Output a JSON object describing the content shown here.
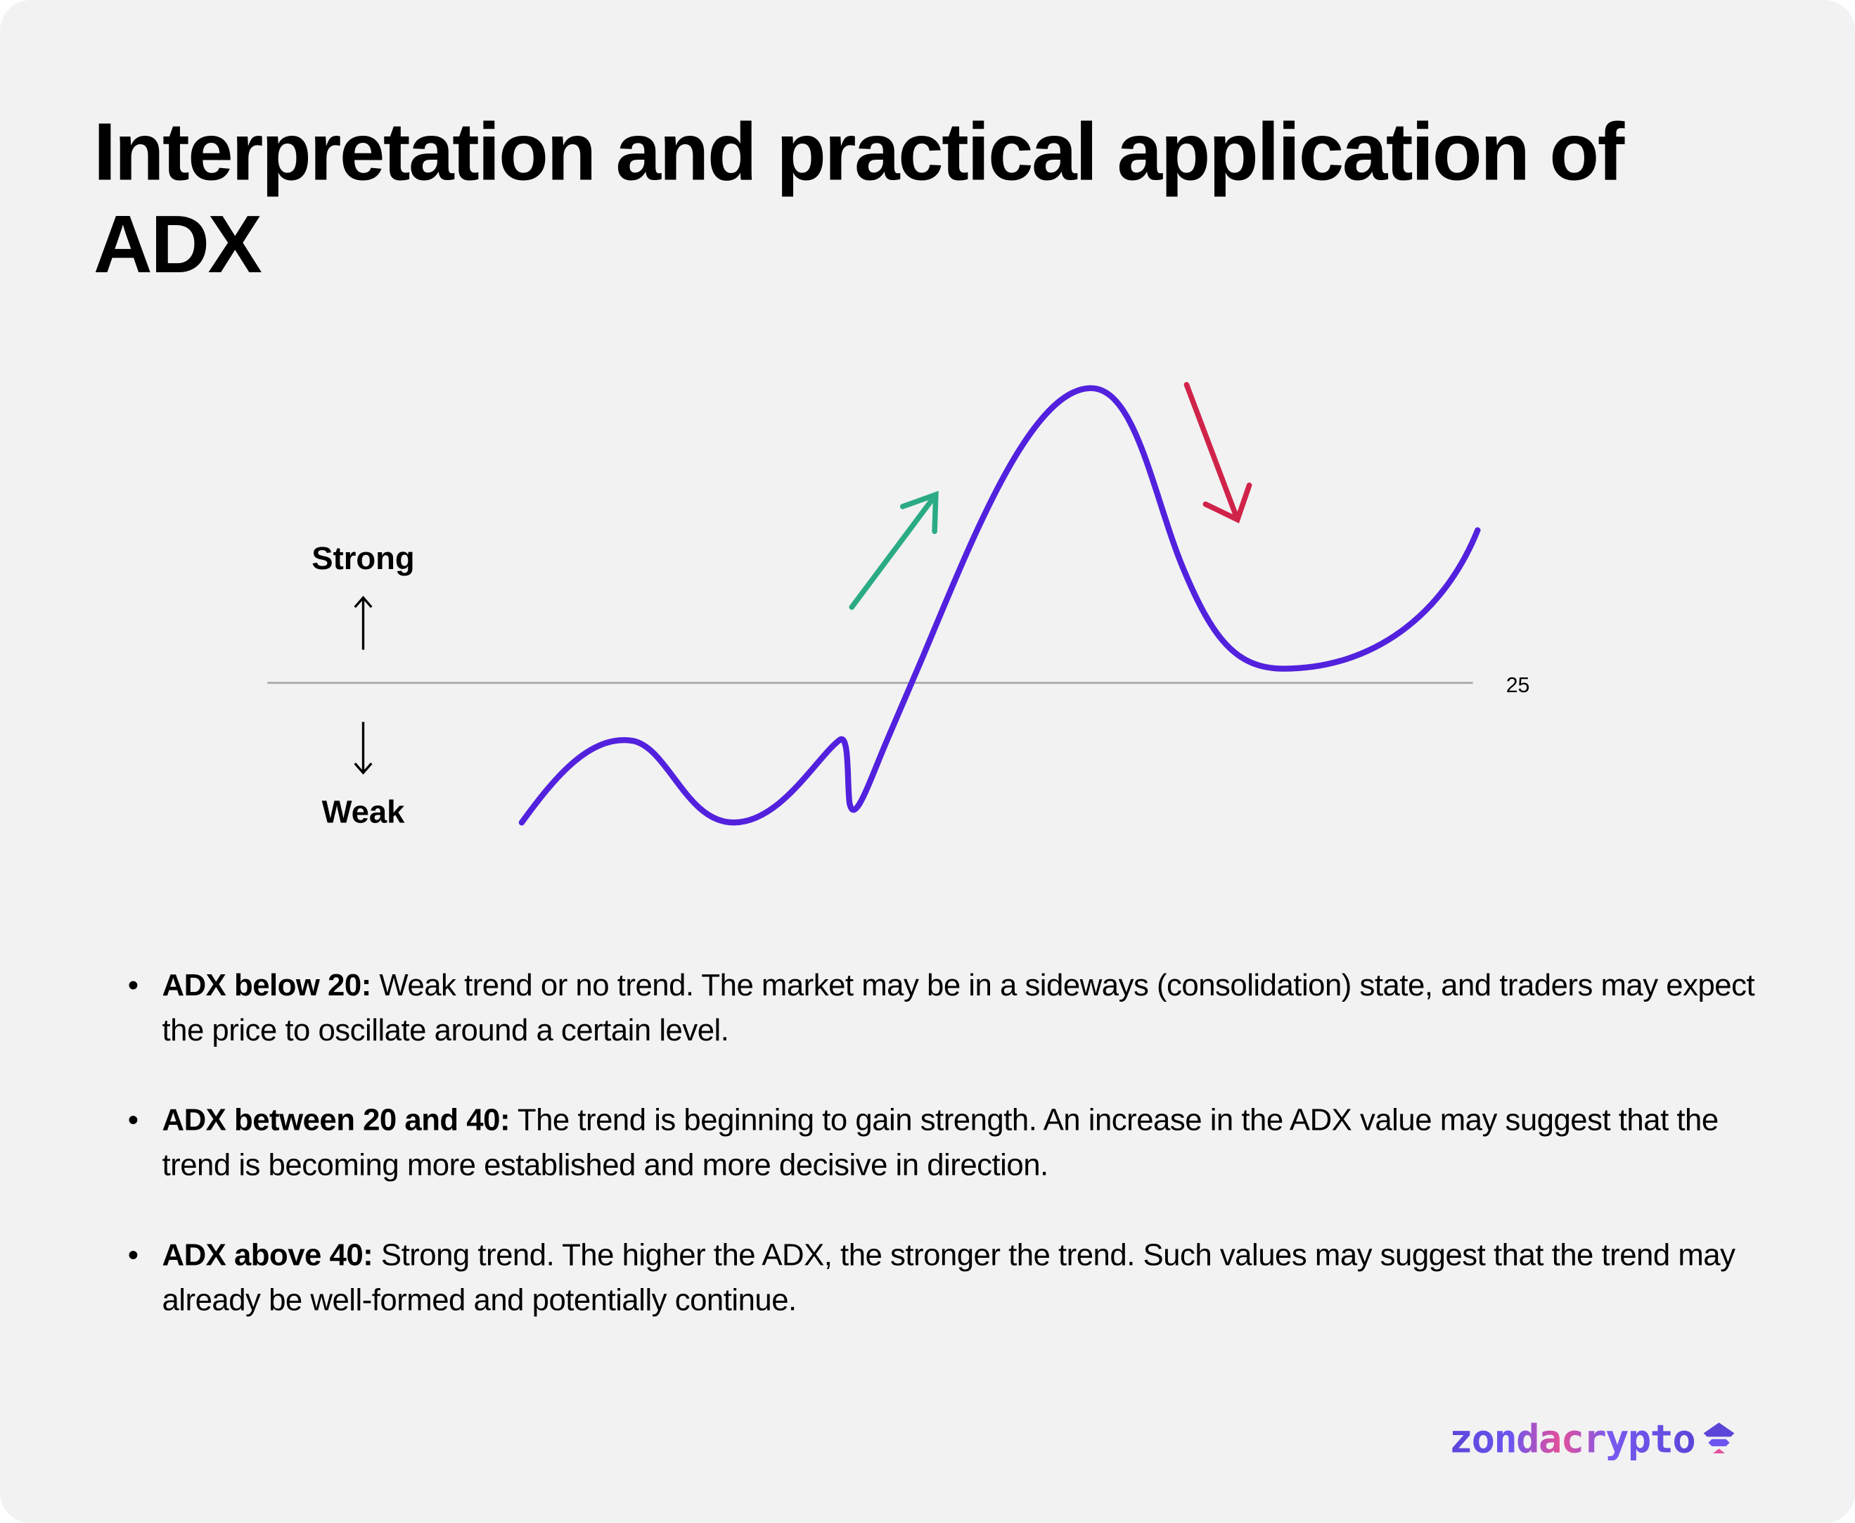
{
  "title": "Interpretation and practical application of ADX",
  "diagram": {
    "strong_label": "Strong",
    "weak_label": "Weak",
    "threshold_label": "25",
    "colors": {
      "line": "#5221de",
      "up_arrow": "#2bab85",
      "down_arrow": "#d0234a",
      "threshold": "#a8a8a8"
    }
  },
  "bullets": [
    {
      "term": "ADX below 20:",
      "text": " Weak trend or no trend. The market may be in a sideways (consolidation) state, and traders may expect the price to oscillate around a certain level."
    },
    {
      "term": "ADX between 20 and 40:",
      "text": " The trend is beginning to gain strength. An increase in the ADX value may suggest that the trend is becoming more established and more decisive in direction."
    },
    {
      "term": "ADX above 40:",
      "text": " Strong trend. The higher the ADX, the stronger the trend. Such values may suggest that the trend may already be well-formed and potentially continue."
    }
  ],
  "logo": {
    "text": "zondacrypto",
    "icon": "zondacrypto-logo-icon"
  }
}
